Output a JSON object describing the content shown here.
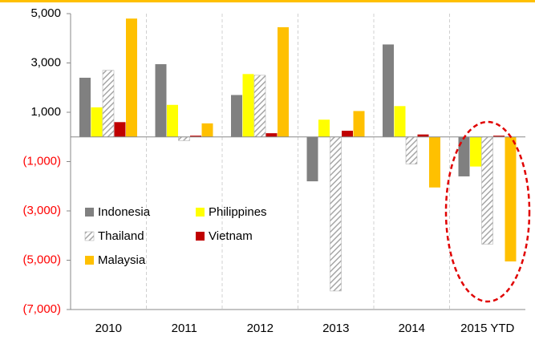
{
  "chart_data": {
    "type": "bar",
    "categories": [
      "2010",
      "2011",
      "2012",
      "2013",
      "2014",
      "2015 YTD"
    ],
    "series": [
      {
        "name": "Indonesia",
        "color": "#808080",
        "values": [
          2400,
          2950,
          1700,
          -1800,
          3750,
          -1600
        ]
      },
      {
        "name": "Philippines",
        "color": "#ffff00",
        "values": [
          1200,
          1300,
          2550,
          700,
          1250,
          -1200
        ]
      },
      {
        "name": "Thailand",
        "color": "#a6a6a6",
        "hatch": true,
        "values": [
          2700,
          -150,
          2500,
          -6250,
          -1100,
          -4350
        ]
      },
      {
        "name": "Vietnam",
        "color": "#c00000",
        "values": [
          600,
          50,
          150,
          250,
          100,
          50
        ]
      },
      {
        "name": "Malaysia",
        "color": "#ffc000",
        "values": [
          4800,
          550,
          4450,
          1050,
          -2050,
          -5050
        ]
      }
    ],
    "ylim": [
      -7000,
      5000
    ],
    "yticks": [
      {
        "value": -7000,
        "label": "(7,000)"
      },
      {
        "value": -5000,
        "label": "(5,000)"
      },
      {
        "value": -3000,
        "label": "(3,000)"
      },
      {
        "value": -1000,
        "label": "(1,000)"
      },
      {
        "value": 1000,
        "label": "1,000"
      },
      {
        "value": 3000,
        "label": "3,000"
      },
      {
        "value": 5000,
        "label": "5,000"
      }
    ],
    "negative_tick_color": "#ff0000",
    "legend": "lower left"
  }
}
